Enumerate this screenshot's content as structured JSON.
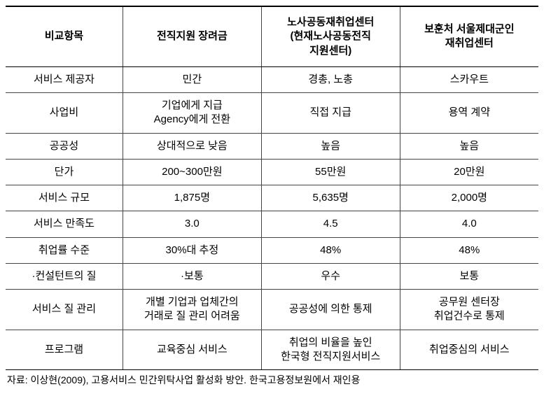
{
  "table": {
    "columns": [
      "비교항목",
      "전직지원 장려금",
      "노사공동재취업센터\n(현재노사공동전직\n지원센터)",
      "보훈처 서울제대군인\n재취업센터"
    ],
    "rows": [
      [
        "서비스 제공자",
        "민간",
        "경총, 노총",
        "스카우트"
      ],
      [
        "사업비",
        "기업에게 지급\nAgency에게 전환",
        "직접 지급",
        "용역 계약"
      ],
      [
        "공공성",
        "상대적으로 낮음",
        "높음",
        "높음"
      ],
      [
        "단가",
        "200~300만원",
        "55만원",
        "20만원"
      ],
      [
        "서비스 규모",
        "1,875명",
        "5,635명",
        "2,000명"
      ],
      [
        "서비스 만족도",
        "3.0",
        "4.5",
        "4.0"
      ],
      [
        "취업률 수준",
        "30%대 추정",
        "48%",
        "48%"
      ],
      [
        "·컨설턴트의 질",
        "·보통",
        "우수",
        "보통"
      ],
      [
        "서비스 질 관리",
        "개별 기업과 업체간의\n거래로 질 관리 어려움",
        "공공성에 의한 통제",
        "공무원 센터장\n취업건수로 통제"
      ],
      [
        "프로그램",
        "교육중심 서비스",
        "취업의 비율을 높인\n한국형 전직지원서비스",
        "취업중심의 서비스"
      ]
    ],
    "column_widths": [
      "22%",
      "26%",
      "26%",
      "26%"
    ]
  },
  "source_note": "자료: 이상현(2009), 고용서비스 민간위탁사업 활성화 방안. 한국고용정보원에서 재인용",
  "style": {
    "font_family": "Malgun Gothic",
    "header_fontsize": 15,
    "cell_fontsize": 15,
    "border_color": "#444444",
    "outer_border_color": "#000000",
    "background_color": "#ffffff",
    "text_color": "#000000"
  }
}
